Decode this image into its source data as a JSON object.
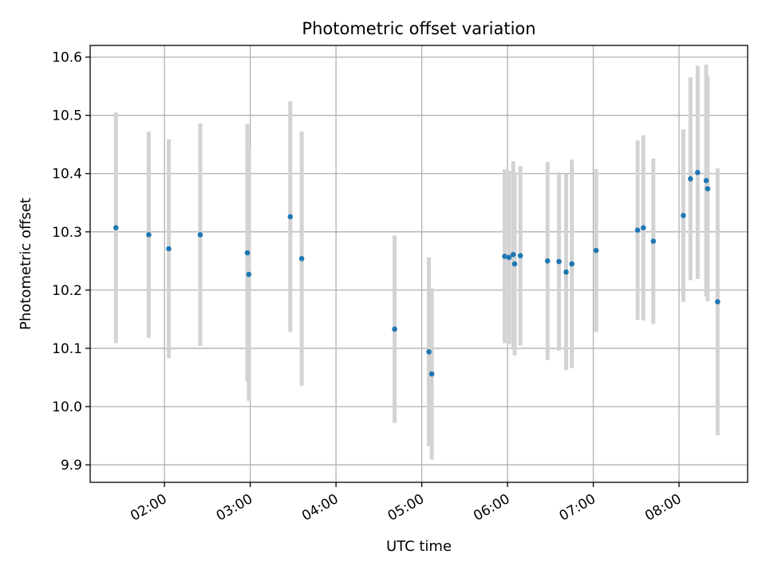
{
  "chart_data": {
    "type": "scatter",
    "title": "Photometric offset variation",
    "xlabel": "UTC time",
    "ylabel": "Photometric offset",
    "x_unit": "hour of day (UTC)",
    "xlim": [
      "01:08",
      "08:48"
    ],
    "ylim": [
      9.87,
      10.62
    ],
    "x_ticks": [
      "02:00",
      "03:00",
      "04:00",
      "05:00",
      "06:00",
      "07:00",
      "08:00"
    ],
    "y_ticks": [
      "9.9",
      "10.0",
      "10.1",
      "10.2",
      "10.3",
      "10.4",
      "10.5",
      "10.6"
    ],
    "grid": true,
    "colors": {
      "points": "#1f77b4",
      "errorbars": "#d3d3d3",
      "grid": "#b0b0b0"
    },
    "points": [
      {
        "x": "01:26",
        "y": 10.307,
        "err": 0.198
      },
      {
        "x": "01:49",
        "y": 10.295,
        "err": 0.177
      },
      {
        "x": "02:03",
        "y": 10.271,
        "err": 0.188
      },
      {
        "x": "02:25",
        "y": 10.295,
        "err": 0.191
      },
      {
        "x": "02:58",
        "y": 10.264,
        "err": 0.221
      },
      {
        "x": "02:59",
        "y": 10.227,
        "err": 0.217
      },
      {
        "x": "03:28",
        "y": 10.326,
        "err": 0.198
      },
      {
        "x": "03:36",
        "y": 10.254,
        "err": 0.218
      },
      {
        "x": "04:41",
        "y": 10.133,
        "err": 0.161
      },
      {
        "x": "05:05",
        "y": 10.094,
        "err": 0.162
      },
      {
        "x": "05:07",
        "y": 10.056,
        "err": 0.147
      },
      {
        "x": "05:58",
        "y": 10.258,
        "err": 0.149
      },
      {
        "x": "06:01",
        "y": 10.256,
        "err": 0.149
      },
      {
        "x": "06:04",
        "y": 10.261,
        "err": 0.16
      },
      {
        "x": "06:05",
        "y": 10.245,
        "err": 0.157
      },
      {
        "x": "06:09",
        "y": 10.259,
        "err": 0.154
      },
      {
        "x": "06:28",
        "y": 10.25,
        "err": 0.17
      },
      {
        "x": "06:36",
        "y": 10.249,
        "err": 0.153
      },
      {
        "x": "06:41",
        "y": 10.231,
        "err": 0.168
      },
      {
        "x": "06:45",
        "y": 10.245,
        "err": 0.179
      },
      {
        "x": "07:02",
        "y": 10.268,
        "err": 0.14
      },
      {
        "x": "07:31",
        "y": 10.303,
        "err": 0.154
      },
      {
        "x": "07:35",
        "y": 10.307,
        "err": 0.159
      },
      {
        "x": "07:42",
        "y": 10.284,
        "err": 0.142
      },
      {
        "x": "08:03",
        "y": 10.328,
        "err": 0.148
      },
      {
        "x": "08:08",
        "y": 10.391,
        "err": 0.174
      },
      {
        "x": "08:13",
        "y": 10.402,
        "err": 0.183
      },
      {
        "x": "08:19",
        "y": 10.388,
        "err": 0.199
      },
      {
        "x": "08:20",
        "y": 10.374,
        "err": 0.193
      },
      {
        "x": "08:27",
        "y": 10.18,
        "err": 0.229
      }
    ]
  }
}
